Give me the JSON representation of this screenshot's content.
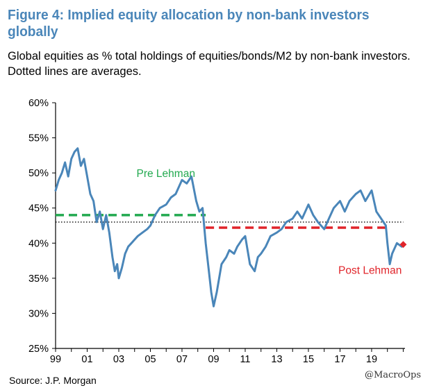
{
  "header": {
    "title": "Figure 4: Implied equity allocation by non-bank investors globally",
    "subtitle": "Global equities as % total holdings of equities/bonds/M2 by non-bank investors. Dotted lines are averages."
  },
  "footer": {
    "source": "Source: J.P. Morgan",
    "watermark": "@MacroOps"
  },
  "colors": {
    "title": "#4a86b9",
    "series": "#4a86b9",
    "pre": "#22a94f",
    "post": "#e0242a",
    "avg": "#000000"
  },
  "chart_data": {
    "type": "line",
    "xlabel": "",
    "ylabel": "",
    "xlim": [
      1999,
      2021.2
    ],
    "ylim": [
      25,
      60
    ],
    "x_ticks": [
      1999,
      2001,
      2003,
      2005,
      2007,
      2009,
      2011,
      2013,
      2015,
      2017,
      2019
    ],
    "x_tick_labels": [
      "99",
      "01",
      "03",
      "05",
      "07",
      "09",
      "11",
      "13",
      "15",
      "17",
      "19"
    ],
    "y_ticks": [
      25,
      30,
      35,
      40,
      45,
      50,
      55,
      60
    ],
    "y_tick_labels": [
      "25%",
      "30%",
      "35%",
      "40%",
      "45%",
      "50%",
      "55%",
      "60%"
    ],
    "series": [
      {
        "name": "Global equities % of equities/bonds/M2",
        "x": [
          1999.0,
          1999.2,
          1999.4,
          1999.6,
          1999.8,
          2000.0,
          2000.2,
          2000.4,
          2000.6,
          2000.8,
          2001.0,
          2001.2,
          2001.4,
          2001.6,
          2001.8,
          2002.0,
          2002.2,
          2002.4,
          2002.6,
          2002.75,
          2002.9,
          2003.0,
          2003.2,
          2003.4,
          2003.6,
          2003.8,
          2004.0,
          2004.2,
          2004.5,
          2004.8,
          2005.0,
          2005.3,
          2005.6,
          2006.0,
          2006.3,
          2006.6,
          2007.0,
          2007.3,
          2007.6,
          2007.9,
          2008.1,
          2008.3,
          2008.5,
          2008.7,
          2008.85,
          2009.0,
          2009.2,
          2009.5,
          2009.8,
          2010.0,
          2010.3,
          2010.5,
          2010.8,
          2011.0,
          2011.3,
          2011.6,
          2011.8,
          2012.0,
          2012.3,
          2012.6,
          2013.0,
          2013.3,
          2013.6,
          2014.0,
          2014.3,
          2014.6,
          2015.0,
          2015.3,
          2015.6,
          2016.0,
          2016.3,
          2016.6,
          2017.0,
          2017.3,
          2017.6,
          2018.0,
          2018.3,
          2018.6,
          2019.0,
          2019.3,
          2019.6,
          2019.9,
          2020.0,
          2020.15,
          2020.3,
          2020.6,
          2020.9
        ],
        "y": [
          47.5,
          49.0,
          50.0,
          51.5,
          49.5,
          52.0,
          53.0,
          53.5,
          51.0,
          52.0,
          49.5,
          47.0,
          46.0,
          43.0,
          44.5,
          42.0,
          44.0,
          41.5,
          38.0,
          36.0,
          37.0,
          35.0,
          36.5,
          38.5,
          39.5,
          40.0,
          40.5,
          41.0,
          41.5,
          42.0,
          42.5,
          44.0,
          45.0,
          45.5,
          46.5,
          47.0,
          49.0,
          48.5,
          49.5,
          46.0,
          44.5,
          45.0,
          40.0,
          36.0,
          33.0,
          31.0,
          33.0,
          37.0,
          38.0,
          39.0,
          38.5,
          39.5,
          40.5,
          41.0,
          37.0,
          36.0,
          38.0,
          38.5,
          39.5,
          41.0,
          41.5,
          42.0,
          43.0,
          43.5,
          44.5,
          43.5,
          45.5,
          44.0,
          43.0,
          42.0,
          43.5,
          45.0,
          46.0,
          44.5,
          46.0,
          47.0,
          47.5,
          46.0,
          47.5,
          44.5,
          43.5,
          42.5,
          40.0,
          37.0,
          38.5,
          40.0,
          39.5
        ]
      }
    ],
    "reference_lines": [
      {
        "name": "overall average (dotted)",
        "value": 43.0,
        "x_from": 1999,
        "x_to": 2021.0
      },
      {
        "name": "pre-Lehman average",
        "value": 44.0,
        "x_from": 1999,
        "x_to": 2008.5
      },
      {
        "name": "post-Lehman average",
        "value": 42.2,
        "x_from": 2008.5,
        "x_to": 2020.0
      }
    ],
    "latest_point": {
      "x": 2021.0,
      "y": 39.8
    },
    "annotations": [
      {
        "text": "Pre Lehman",
        "x": 2004.0,
        "y": 50.0
      },
      {
        "text": "Post Lehman",
        "x": 2018.9,
        "y": 36.2
      }
    ]
  }
}
